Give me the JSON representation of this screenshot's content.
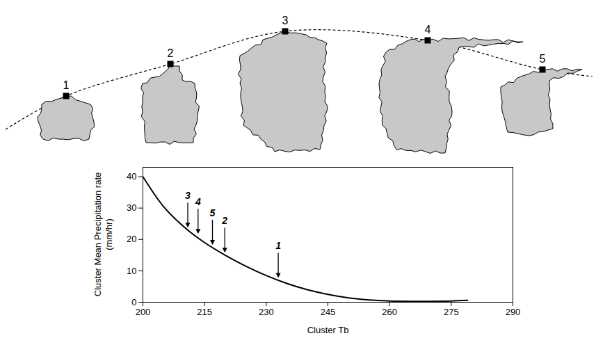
{
  "diagram": {
    "labels": [
      "1",
      "2",
      "3",
      "4",
      "5"
    ]
  },
  "chart_data": {
    "type": "line",
    "xlabel": "Cluster Tb",
    "ylabel": "Cluster Mean Precipitation rate (mm/hr)",
    "x": [
      200,
      205,
      210,
      215,
      220,
      225,
      230,
      235,
      240,
      245,
      250,
      255,
      260,
      265,
      270,
      275,
      279
    ],
    "values": [
      40,
      30.5,
      24,
      19,
      15,
      11.5,
      8.5,
      6,
      4,
      2.5,
      1.4,
      0.7,
      0.4,
      0.3,
      0.3,
      0.4,
      0.6
    ],
    "color": "#000000",
    "xlim": [
      200,
      290
    ],
    "ylim": [
      0,
      43
    ],
    "xticks": [
      200,
      215,
      230,
      245,
      260,
      275,
      290
    ],
    "yticks": [
      0,
      10,
      20,
      30,
      40
    ],
    "grid": false,
    "annotations": [
      {
        "text": "3",
        "x": 211,
        "y": 23
      },
      {
        "text": "4",
        "x": 213.5,
        "y": 21
      },
      {
        "text": "5",
        "x": 217,
        "y": 17.5
      },
      {
        "text": "2",
        "x": 220,
        "y": 15
      },
      {
        "text": "1",
        "x": 233,
        "y": 7
      }
    ]
  }
}
